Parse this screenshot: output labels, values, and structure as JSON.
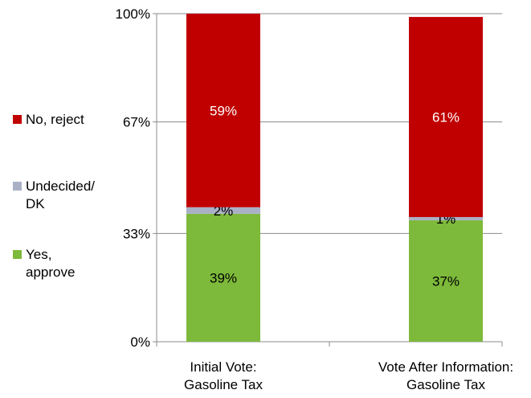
{
  "chart_data": {
    "type": "bar",
    "stacked": true,
    "categories": [
      "Initial Vote:\nGasoline Tax",
      "Vote After Information:\nGasoline Tax"
    ],
    "series": [
      {
        "name": "Yes,\napprove",
        "values": [
          39,
          37
        ],
        "color": "#7db93a"
      },
      {
        "name": "Undecided/\nDK",
        "values": [
          2,
          1
        ],
        "color": "#aab0c6"
      },
      {
        "name": "No, reject",
        "values": [
          59,
          61
        ],
        "color": "#c00000"
      }
    ],
    "data_labels": [
      [
        "39%",
        "2%",
        "59%"
      ],
      [
        "37%",
        "1%",
        "61%"
      ]
    ],
    "yticks": [
      0,
      33,
      67,
      100
    ],
    "ytick_labels": [
      "0%",
      "33%",
      "67%",
      "100%"
    ],
    "ylim": [
      0,
      100
    ],
    "grid": true,
    "legend_position": "left",
    "legend_order": [
      2,
      1,
      0
    ]
  }
}
